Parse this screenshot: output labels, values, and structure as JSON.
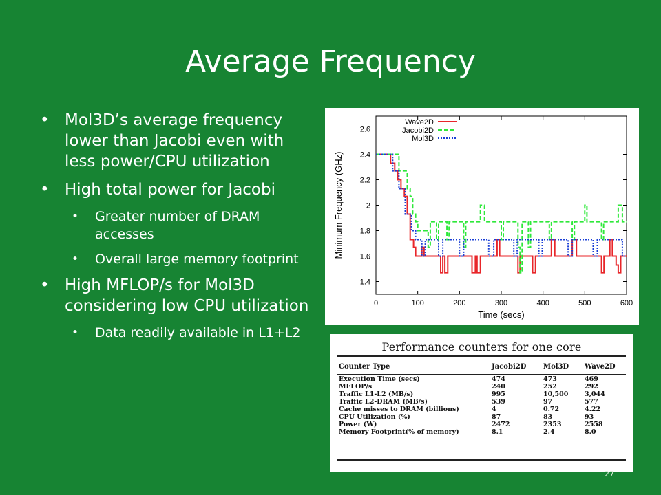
{
  "slide": {
    "title": "Average Frequency",
    "slide_number": "27",
    "background_color": "#178433"
  },
  "bullets": [
    {
      "level": 1,
      "text": "Mol3D’s average frequency lower than Jacobi even with less power/CPU utilization"
    },
    {
      "level": 1,
      "text": "High total power for Jacobi"
    },
    {
      "level": 2,
      "text": "Greater number of DRAM accesses"
    },
    {
      "level": 2,
      "text": "Overall large memory footprint"
    },
    {
      "level": 1,
      "text": "High MFLOP/s for Mol3D considering low CPU utilization"
    },
    {
      "level": 2,
      "text": "Data readily available in L1+L2"
    }
  ],
  "chart_data": {
    "type": "line",
    "xlabel": "Time (secs)",
    "ylabel": "Minimum Frequency (GHz)",
    "xlim": [
      0,
      600
    ],
    "ylim": [
      1.3,
      2.7
    ],
    "xticks": [
      "0",
      "100",
      "200",
      "300",
      "400",
      "500",
      "600"
    ],
    "yticks": [
      "1.4",
      "1.6",
      "1.8",
      "2",
      "2.2",
      "2.4",
      "2.6"
    ],
    "legend_position": "top-left",
    "series": [
      {
        "name": "Wave2D",
        "color": "#e8262a",
        "style": "solid",
        "points": [
          [
            0,
            2.4
          ],
          [
            35,
            2.4
          ],
          [
            35,
            2.33
          ],
          [
            45,
            2.33
          ],
          [
            45,
            2.27
          ],
          [
            52,
            2.27
          ],
          [
            52,
            2.2
          ],
          [
            60,
            2.2
          ],
          [
            60,
            2.13
          ],
          [
            68,
            2.13
          ],
          [
            68,
            2.07
          ],
          [
            75,
            2.07
          ],
          [
            75,
            1.93
          ],
          [
            82,
            1.93
          ],
          [
            82,
            1.73
          ],
          [
            90,
            1.73
          ],
          [
            90,
            1.67
          ],
          [
            95,
            1.67
          ],
          [
            95,
            1.6
          ],
          [
            110,
            1.6
          ],
          [
            110,
            1.67
          ],
          [
            115,
            1.67
          ],
          [
            115,
            1.6
          ],
          [
            155,
            1.6
          ],
          [
            155,
            1.47
          ],
          [
            160,
            1.47
          ],
          [
            160,
            1.6
          ],
          [
            165,
            1.6
          ],
          [
            165,
            1.47
          ],
          [
            172,
            1.47
          ],
          [
            172,
            1.6
          ],
          [
            230,
            1.6
          ],
          [
            230,
            1.47
          ],
          [
            238,
            1.47
          ],
          [
            238,
            1.6
          ],
          [
            242,
            1.6
          ],
          [
            242,
            1.47
          ],
          [
            250,
            1.47
          ],
          [
            250,
            1.6
          ],
          [
            290,
            1.6
          ],
          [
            290,
            1.73
          ],
          [
            296,
            1.73
          ],
          [
            296,
            1.6
          ],
          [
            340,
            1.6
          ],
          [
            340,
            1.47
          ],
          [
            345,
            1.47
          ],
          [
            345,
            1.6
          ],
          [
            375,
            1.6
          ],
          [
            375,
            1.47
          ],
          [
            382,
            1.47
          ],
          [
            382,
            1.6
          ],
          [
            420,
            1.6
          ],
          [
            420,
            1.73
          ],
          [
            428,
            1.73
          ],
          [
            428,
            1.6
          ],
          [
            470,
            1.6
          ],
          [
            470,
            1.73
          ],
          [
            480,
            1.73
          ],
          [
            480,
            1.6
          ],
          [
            540,
            1.6
          ],
          [
            540,
            1.47
          ],
          [
            546,
            1.47
          ],
          [
            546,
            1.6
          ],
          [
            560,
            1.6
          ],
          [
            560,
            1.73
          ],
          [
            566,
            1.73
          ],
          [
            566,
            1.6
          ],
          [
            575,
            1.6
          ],
          [
            575,
            1.53
          ],
          [
            580,
            1.53
          ],
          [
            580,
            1.47
          ],
          [
            586,
            1.47
          ],
          [
            586,
            1.6
          ],
          [
            600,
            1.6
          ]
        ]
      },
      {
        "name": "Jacobi2D",
        "color": "#2ee83a",
        "style": "dashed",
        "points": [
          [
            0,
            2.4
          ],
          [
            55,
            2.4
          ],
          [
            55,
            2.27
          ],
          [
            75,
            2.27
          ],
          [
            75,
            2.13
          ],
          [
            82,
            2.13
          ],
          [
            82,
            2.07
          ],
          [
            88,
            2.07
          ],
          [
            88,
            1.93
          ],
          [
            95,
            1.93
          ],
          [
            95,
            1.87
          ],
          [
            100,
            1.87
          ],
          [
            100,
            1.8
          ],
          [
            125,
            1.8
          ],
          [
            125,
            1.67
          ],
          [
            130,
            1.67
          ],
          [
            130,
            1.87
          ],
          [
            145,
            1.87
          ],
          [
            145,
            1.73
          ],
          [
            150,
            1.73
          ],
          [
            150,
            1.87
          ],
          [
            170,
            1.87
          ],
          [
            170,
            1.73
          ],
          [
            175,
            1.73
          ],
          [
            175,
            1.87
          ],
          [
            210,
            1.87
          ],
          [
            210,
            1.67
          ],
          [
            215,
            1.67
          ],
          [
            215,
            1.87
          ],
          [
            250,
            1.87
          ],
          [
            250,
            2.0
          ],
          [
            260,
            2.0
          ],
          [
            260,
            1.87
          ],
          [
            300,
            1.87
          ],
          [
            300,
            1.73
          ],
          [
            305,
            1.73
          ],
          [
            305,
            1.87
          ],
          [
            340,
            1.87
          ],
          [
            340,
            1.67
          ],
          [
            345,
            1.67
          ],
          [
            345,
            1.47
          ],
          [
            350,
            1.47
          ],
          [
            350,
            1.87
          ],
          [
            365,
            1.87
          ],
          [
            365,
            1.67
          ],
          [
            370,
            1.67
          ],
          [
            370,
            1.87
          ],
          [
            415,
            1.87
          ],
          [
            415,
            1.73
          ],
          [
            420,
            1.73
          ],
          [
            420,
            1.87
          ],
          [
            470,
            1.87
          ],
          [
            470,
            1.73
          ],
          [
            475,
            1.73
          ],
          [
            475,
            1.87
          ],
          [
            500,
            1.87
          ],
          [
            500,
            2.0
          ],
          [
            505,
            2.0
          ],
          [
            505,
            1.87
          ],
          [
            540,
            1.87
          ],
          [
            540,
            1.73
          ],
          [
            545,
            1.73
          ],
          [
            545,
            1.87
          ],
          [
            580,
            1.87
          ],
          [
            580,
            2.0
          ],
          [
            590,
            2.0
          ],
          [
            590,
            1.87
          ],
          [
            600,
            1.87
          ]
        ]
      },
      {
        "name": "Mol3D",
        "color": "#1a3fd6",
        "style": "dotted",
        "points": [
          [
            0,
            2.4
          ],
          [
            40,
            2.4
          ],
          [
            40,
            2.27
          ],
          [
            55,
            2.27
          ],
          [
            55,
            2.13
          ],
          [
            70,
            2.13
          ],
          [
            70,
            1.93
          ],
          [
            85,
            1.93
          ],
          [
            85,
            1.8
          ],
          [
            95,
            1.8
          ],
          [
            95,
            1.73
          ],
          [
            110,
            1.73
          ],
          [
            110,
            1.6
          ],
          [
            118,
            1.6
          ],
          [
            118,
            1.73
          ],
          [
            150,
            1.73
          ],
          [
            150,
            1.6
          ],
          [
            160,
            1.6
          ],
          [
            160,
            1.73
          ],
          [
            200,
            1.73
          ],
          [
            200,
            1.6
          ],
          [
            210,
            1.6
          ],
          [
            210,
            1.73
          ],
          [
            270,
            1.73
          ],
          [
            270,
            1.6
          ],
          [
            282,
            1.6
          ],
          [
            282,
            1.73
          ],
          [
            330,
            1.73
          ],
          [
            330,
            1.6
          ],
          [
            338,
            1.6
          ],
          [
            338,
            1.73
          ],
          [
            390,
            1.73
          ],
          [
            390,
            1.6
          ],
          [
            398,
            1.6
          ],
          [
            398,
            1.73
          ],
          [
            460,
            1.73
          ],
          [
            460,
            1.6
          ],
          [
            470,
            1.6
          ],
          [
            470,
            1.73
          ],
          [
            520,
            1.73
          ],
          [
            520,
            1.6
          ],
          [
            530,
            1.6
          ],
          [
            530,
            1.73
          ],
          [
            590,
            1.73
          ],
          [
            590,
            1.6
          ],
          [
            600,
            1.6
          ]
        ]
      }
    ]
  },
  "counters_table": {
    "title": "Performance counters for one core",
    "headers": [
      "Counter Type",
      "Jacobi2D",
      "Mol3D",
      "Wave2D"
    ],
    "rows": [
      [
        "Execution Time (secs)",
        "474",
        "473",
        "469"
      ],
      [
        "MFLOP/s",
        "240",
        "252",
        "292"
      ],
      [
        "Traffic L1-L2 (MB/s)",
        "995",
        "10,500",
        "3,044"
      ],
      [
        "Traffic L2-DRAM (MB/s)",
        "539",
        "97",
        "577"
      ],
      [
        "Cache misses to DRAM (billions)",
        "4",
        "0.72",
        "4.22"
      ],
      [
        "CPU Utilization (%)",
        "87",
        "83",
        "93"
      ],
      [
        "Power (W)",
        "2472",
        "2353",
        "2558"
      ],
      [
        "Memory Footprint(% of memory)",
        "8.1",
        "2.4",
        "8.0"
      ]
    ]
  }
}
